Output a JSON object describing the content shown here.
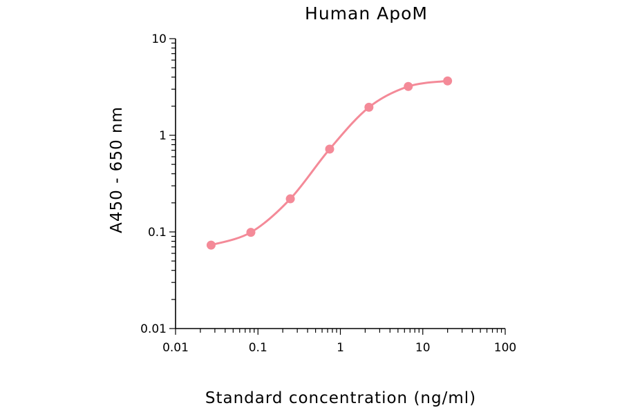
{
  "chart_data": {
    "type": "line",
    "title": "Human ApoM",
    "xlabel": "Standard concentration (ng/ml)",
    "ylabel": "A450 - 650 nm",
    "x_scale": "log",
    "y_scale": "log",
    "xlim": [
      0.01,
      100
    ],
    "ylim": [
      0.01,
      10
    ],
    "x_ticks": [
      "0.01",
      "0.1",
      "1",
      "10",
      "100"
    ],
    "y_ticks": [
      "0.01",
      "0.1",
      "1",
      "10"
    ],
    "grid": false,
    "series": [
      {
        "color": "#f48a98",
        "x": [
          0.027,
          0.082,
          0.247,
          0.741,
          2.222,
          6.667,
          20
        ],
        "y": [
          0.073,
          0.099,
          0.22,
          0.72,
          1.95,
          3.2,
          3.65
        ]
      }
    ]
  }
}
